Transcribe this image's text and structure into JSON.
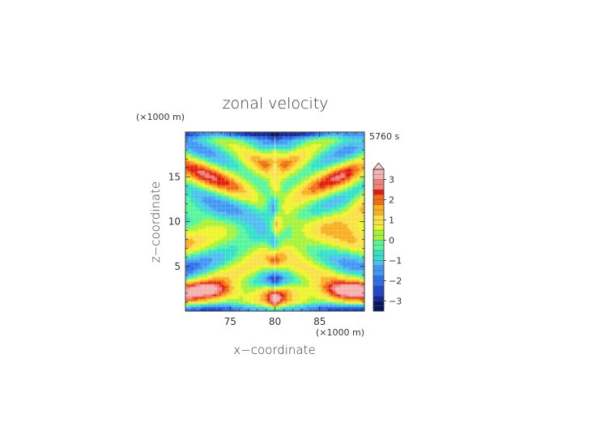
{
  "chart_data": {
    "type": "heatmap",
    "title": "zonal velocity",
    "time_label": "5760 s",
    "xlabel": "x−coordinate",
    "ylabel": "z−coordinate",
    "x_unit": "(×1000 m)",
    "y_unit": "(×1000 m)",
    "xlim": [
      70,
      90
    ],
    "ylim": [
      0,
      20
    ],
    "x_ticks": [
      75,
      80,
      85
    ],
    "y_ticks": [
      5,
      10,
      15
    ],
    "x_tick_labels": [
      "75",
      "80",
      "85"
    ],
    "y_tick_labels": [
      "5",
      "10",
      "15"
    ],
    "colorbar": {
      "min": -3.5,
      "max": 3.5,
      "step": 0.25,
      "tick_values": [
        3,
        2,
        1,
        0,
        -1,
        -2,
        -3
      ],
      "tick_labels": [
        "3",
        "2",
        "1",
        "0",
        "−1",
        "−2",
        "−3"
      ],
      "extend": "max",
      "colors": [
        "#0a1560",
        "#142a9a",
        "#1f49c8",
        "#2e6ee8",
        "#3f98f2",
        "#4fbef0",
        "#36e0c8",
        "#58f59a",
        "#a7f23a",
        "#eef52a",
        "#fae046",
        "#f8b020",
        "#f26a14",
        "#e21b10",
        "#f0807a",
        "#f6b0b0"
      ]
    },
    "grid": true
  }
}
